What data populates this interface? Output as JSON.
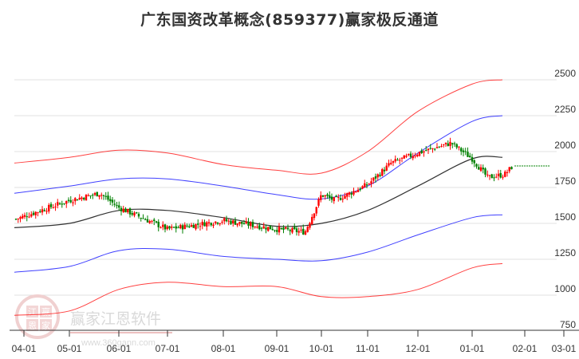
{
  "title": "广东国资改革概念(859377)赢家极反通道",
  "watermark": {
    "brand": "赢家江恩软件",
    "url": "www.360gann.com",
    "seal_chars": [
      "江",
      "赢",
      "恩",
      "家"
    ]
  },
  "colors": {
    "up_candle": "#ff0000",
    "down_candle": "#008000",
    "outer_band": "#ff0000",
    "inner_band": "#0000ff",
    "mid_line": "#000000",
    "last_price_line": "#008000",
    "grid": "#e0e0e0"
  },
  "chart_data": {
    "type": "candlestick",
    "title": "广东国资改革概念(859377)赢家极反通道",
    "xlabel": "",
    "ylabel": "",
    "ylim": [
      750,
      2600
    ],
    "y_ticks": [
      2500,
      2250,
      2000,
      1750,
      1500,
      1250,
      1000,
      750
    ],
    "x_ticks": [
      "04-01",
      "05-01",
      "06-01",
      "07-01",
      "08-01",
      "09-01",
      "10-01",
      "11-01",
      "12-01",
      "01-01",
      "02-01",
      "03-01"
    ],
    "grid": true,
    "y_axis_position": "right",
    "last_price_level": 1900,
    "series": [
      {
        "name": "outer-upper-band",
        "color": "#ff0000",
        "points": [
          [
            "04-01",
            1920
          ],
          [
            "05-01",
            1960
          ],
          [
            "06-01",
            2010
          ],
          [
            "07-01",
            1990
          ],
          [
            "08-01",
            1910
          ],
          [
            "09-01",
            1870
          ],
          [
            "10-01",
            1850
          ],
          [
            "11-01",
            2000
          ],
          [
            "12-01",
            2280
          ],
          [
            "01-01",
            2470
          ],
          [
            "02-01",
            2500
          ]
        ]
      },
      {
        "name": "inner-upper-band",
        "color": "#0000ff",
        "points": [
          [
            "04-01",
            1710
          ],
          [
            "05-01",
            1760
          ],
          [
            "06-01",
            1810
          ],
          [
            "07-01",
            1810
          ],
          [
            "08-01",
            1760
          ],
          [
            "09-01",
            1700
          ],
          [
            "10-01",
            1670
          ],
          [
            "11-01",
            1760
          ],
          [
            "12-01",
            1990
          ],
          [
            "01-01",
            2210
          ],
          [
            "02-01",
            2250
          ]
        ]
      },
      {
        "name": "middle-line",
        "color": "#000000",
        "points": [
          [
            "04-01",
            1470
          ],
          [
            "05-01",
            1500
          ],
          [
            "06-01",
            1590
          ],
          [
            "07-01",
            1590
          ],
          [
            "08-01",
            1540
          ],
          [
            "09-01",
            1480
          ],
          [
            "10-01",
            1500
          ],
          [
            "11-01",
            1590
          ],
          [
            "12-01",
            1760
          ],
          [
            "01-01",
            1950
          ],
          [
            "02-01",
            1960
          ]
        ]
      },
      {
        "name": "inner-lower-band",
        "color": "#0000ff",
        "points": [
          [
            "04-01",
            1160
          ],
          [
            "05-01",
            1200
          ],
          [
            "06-01",
            1310
          ],
          [
            "07-01",
            1320
          ],
          [
            "08-01",
            1270
          ],
          [
            "09-01",
            1250
          ],
          [
            "10-01",
            1240
          ],
          [
            "11-01",
            1300
          ],
          [
            "12-01",
            1420
          ],
          [
            "01-01",
            1540
          ],
          [
            "02-01",
            1560
          ]
        ]
      },
      {
        "name": "outer-lower-band",
        "color": "#ff0000",
        "points": [
          [
            "04-01",
            860
          ],
          [
            "05-01",
            890
          ],
          [
            "06-01",
            1040
          ],
          [
            "07-01",
            1090
          ],
          [
            "08-01",
            1060
          ],
          [
            "09-01",
            1060
          ],
          [
            "10-01",
            990
          ],
          [
            "11-01",
            990
          ],
          [
            "12-01",
            1040
          ],
          [
            "01-01",
            1190
          ],
          [
            "02-01",
            1220
          ]
        ]
      },
      {
        "name": "index-close",
        "color": "#333333",
        "points": [
          [
            "04-01",
            1530
          ],
          [
            "05-01",
            1660
          ],
          [
            "05-20",
            1710
          ],
          [
            "06-01",
            1610
          ],
          [
            "07-01",
            1460
          ],
          [
            "08-01",
            1520
          ],
          [
            "09-01",
            1460
          ],
          [
            "09-20",
            1440
          ],
          [
            "10-01",
            1700
          ],
          [
            "10-10",
            1660
          ],
          [
            "11-01",
            1770
          ],
          [
            "11-15",
            1920
          ],
          [
            "12-01",
            1990
          ],
          [
            "12-20",
            2060
          ],
          [
            "01-01",
            1950
          ],
          [
            "01-10",
            1820
          ],
          [
            "01-20",
            1840
          ],
          [
            "01-25",
            1900
          ]
        ]
      }
    ]
  }
}
